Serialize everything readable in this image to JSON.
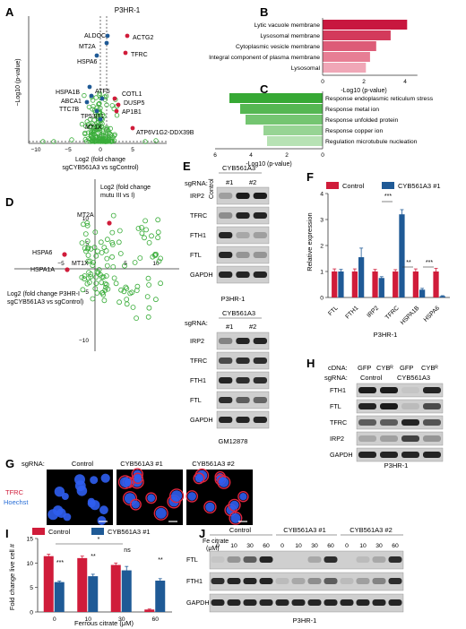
{
  "panels": {
    "A": "A",
    "B": "B",
    "C": "C",
    "D": "D",
    "E": "E",
    "F": "F",
    "G": "G",
    "H": "H",
    "I": "I",
    "J": "J"
  },
  "volcano": {
    "title": "P3HR-1",
    "ylabel": "−Log10 (p-value)",
    "xlabel1": "Log2 (fold change",
    "xlabel2": "sgCYB561A3 vs sgControl)",
    "xticks": [
      "−10",
      "−5",
      "0",
      "5"
    ],
    "labels": {
      "aldoc": "ALDOC",
      "mt2a": "MT2A",
      "hspa6": "HSPA6",
      "actg2": "ACTG2",
      "tfrc": "TFRC",
      "hspa1b": "HSPA1B",
      "abca1": "ABCA1",
      "ttc7b": "TTC7B",
      "atf5": "ATF5",
      "tp53i11": "TP53I11",
      "mt1x": "MT1X",
      "cotl1": "COTL1",
      "dusp5": "DUSP5",
      "ap1b1": "AP1B1",
      "atp6": "ATP6V1G2-DDX39B"
    }
  },
  "chart_data": [
    {
      "panel": "B",
      "type": "bar",
      "categories": [
        "Lytic vacuole membrane",
        "Lysosomal membrane",
        "Cytoplasmic vesicle membrane",
        "Integral component of plasma membrane",
        "Lysosomal"
      ],
      "values": [
        4.1,
        3.3,
        2.6,
        2.3,
        2.1
      ],
      "xlim": [
        0,
        5
      ],
      "xticks": [
        "0",
        "2",
        "4"
      ],
      "xlabel": "-Log10 (p-value)"
    },
    {
      "panel": "C",
      "type": "bar",
      "categories": [
        "Response endoplasmic reticulum stress",
        "Response metal ion",
        "Response unfolded protein",
        "Response copper ion",
        "Regulation microtubule nucleation"
      ],
      "values": [
        5.2,
        4.6,
        4.3,
        3.3,
        3.1
      ],
      "xlim": [
        0,
        6
      ],
      "xticks": [
        "6",
        "4",
        "2",
        "0"
      ],
      "xlabel": "-Log10 (p-value)"
    },
    {
      "panel": "F",
      "type": "bar",
      "categories": [
        "FTL",
        "FTH1",
        "IRP2",
        "TFRC",
        "HSPA1B",
        "HSPA6"
      ],
      "series": [
        {
          "name": "Control",
          "values": [
            1.0,
            1.0,
            1.0,
            1.0,
            1.0,
            1.0
          ]
        },
        {
          "name": "CYB561A3 #1",
          "values": [
            1.0,
            1.55,
            0.75,
            3.2,
            0.3,
            0.05
          ]
        }
      ],
      "ylim": [
        0,
        4
      ],
      "yticks": [
        "0",
        "1",
        "2",
        "3",
        "4"
      ],
      "ylabel": "Relative expression",
      "xlabel": "P3HR-1",
      "sig": [
        "***",
        "**",
        "***"
      ]
    },
    {
      "panel": "I",
      "type": "bar",
      "categories": [
        "0",
        "10",
        "30",
        "60"
      ],
      "series": [
        {
          "name": "Control",
          "values": [
            11.4,
            11.0,
            9.6,
            0.5
          ]
        },
        {
          "name": "CYB561A3 #1",
          "values": [
            6.1,
            7.3,
            8.5,
            6.4
          ]
        }
      ],
      "ylim": [
        0,
        15
      ],
      "yticks": [
        "0",
        "5",
        "10",
        "15"
      ],
      "ylabel": "Fold change live cell #",
      "xlabel": "Ferrous citrate (μM)",
      "sig": [
        "***",
        "**",
        "ns",
        "**",
        "*"
      ]
    }
  ],
  "scatterD": {
    "ylabel1": "Log2 (fold change",
    "ylabel2": "mutu III vs I)",
    "xlabel1": "Log2 (fold change P3HR-I",
    "xlabel2": "sgCYB561A3 vs sgControl)",
    "xticks": [
      "−5",
      "5",
      "10"
    ],
    "yticks": [
      "10",
      "5",
      "−5",
      "−10"
    ],
    "labels": {
      "mt2a": "MT2A",
      "hspa6": "HSPA6",
      "hspa1a": "HSPA1A",
      "mt1x": "MT1X"
    }
  },
  "blotE": {
    "sgrna": "sgRNA:",
    "control": "Control",
    "group": "CYB561A3",
    "n1": "#1",
    "n2": "#2",
    "rows": [
      "IRP2",
      "TFRC",
      "FTH1",
      "FTL",
      "GAPDH"
    ],
    "cell1": "P3HR-1",
    "cell2": "GM12878"
  },
  "legendF": {
    "control": "Control",
    "kd": "CYB561A3 #1"
  },
  "blotH": {
    "cdna": "cDNA:",
    "gfp": "GFP",
    "cybr": "CYBᴿ",
    "sgrna": "sgRNA:",
    "control": "Control",
    "group": "CYB561A3",
    "rows": [
      "FTH1",
      "FTL",
      "TFRC",
      "IRP2",
      "GAPDH"
    ],
    "cell": "P3HR-1"
  },
  "imgG": {
    "sgrna": "sgRNA:",
    "c1": "Control",
    "c2": "CYB561A3 #1",
    "c3": "CYB561A3 #2",
    "tfrc": "TFRC",
    "hoechst": "Hoechst"
  },
  "legendI": {
    "control": "Control",
    "kd": "CYB561A3 #1"
  },
  "blotJ": {
    "fe1": "Fe citrate",
    "fe2": "(μM)",
    "g1": "Control",
    "g2": "CYB561A3 #1",
    "g3": "CYB561A3 #2",
    "doses": [
      "0",
      "10",
      "30",
      "60"
    ],
    "rows": [
      "FTL",
      "FTH1",
      "GAPDH"
    ],
    "cell": "P3HR-1"
  },
  "colors": {
    "control": "#d01c3a",
    "kd": "#1f5a96",
    "green": "#3aad3a"
  }
}
